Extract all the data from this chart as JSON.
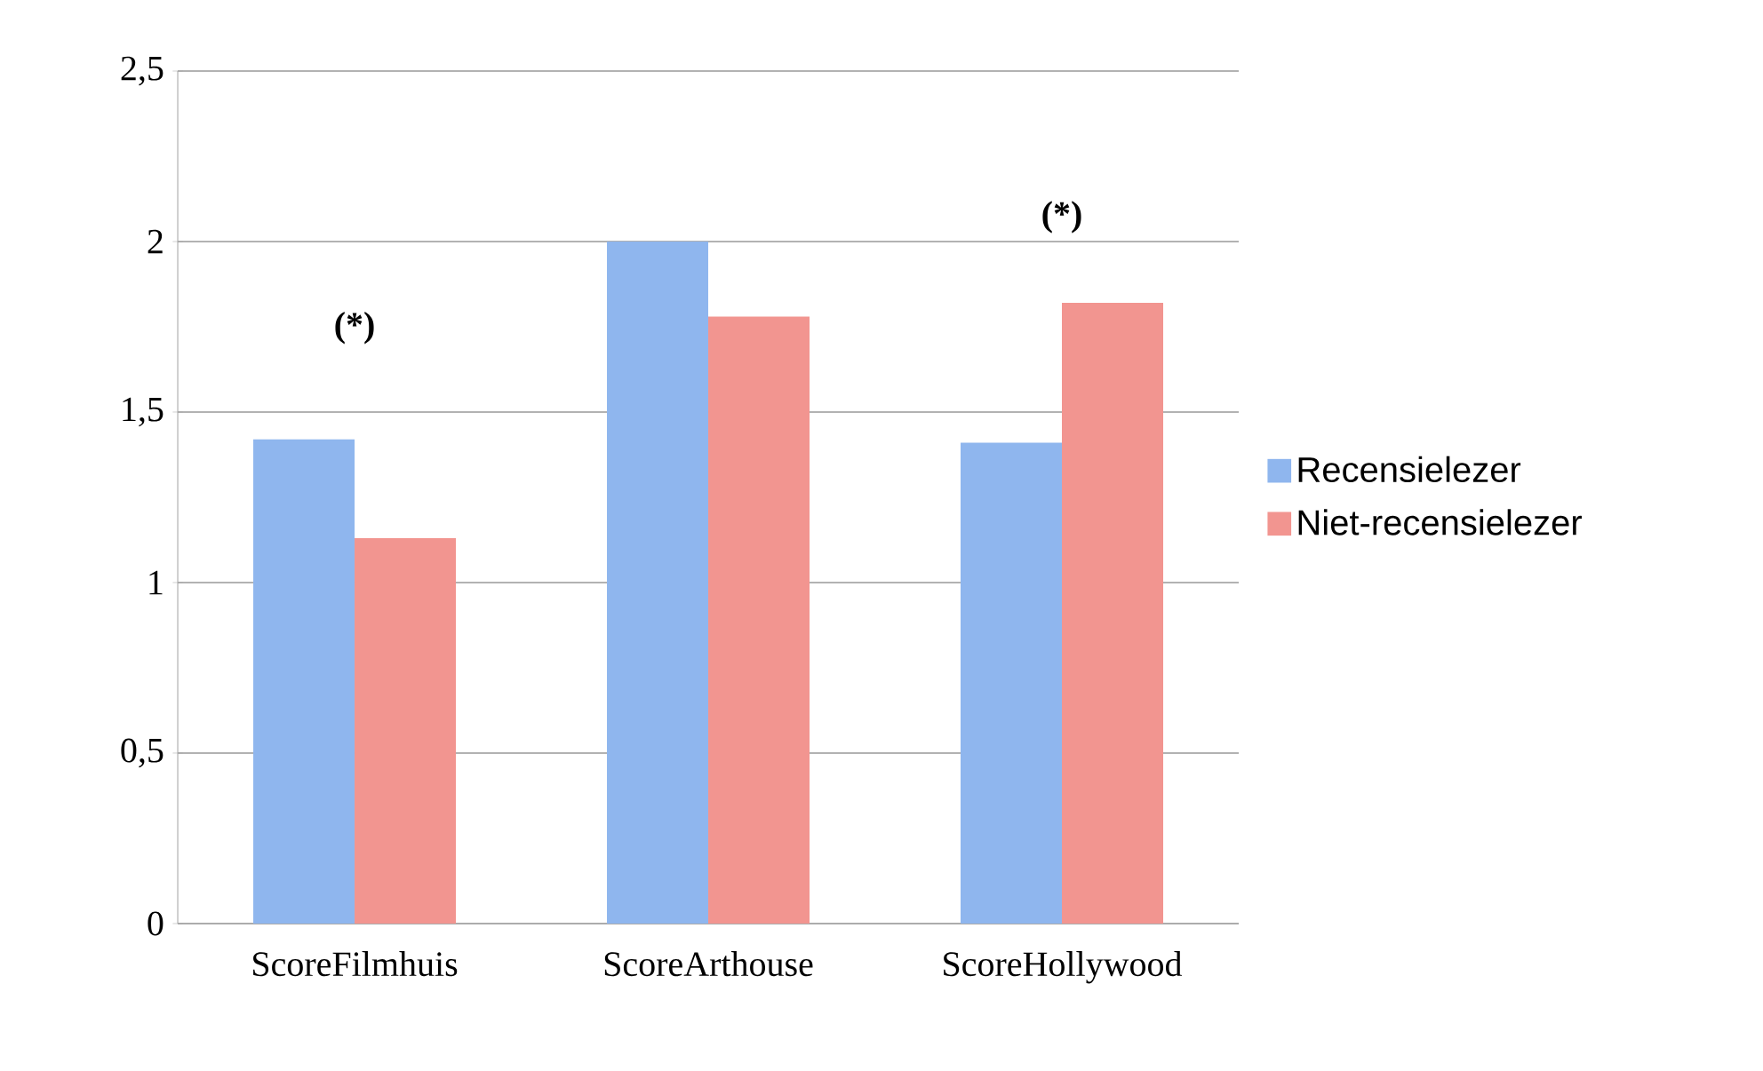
{
  "chart_data": {
    "type": "bar",
    "categories": [
      "ScoreFilmhuis",
      "ScoreArthouse",
      "ScoreHollywood"
    ],
    "series": [
      {
        "name": "Recensielezer",
        "color": "#8fb6ee",
        "values": [
          1.42,
          2.0,
          1.41
        ]
      },
      {
        "name": "Niet-recensielezer",
        "color": "#f29590",
        "values": [
          1.13,
          1.78,
          1.82
        ]
      }
    ],
    "ylim": [
      0,
      2.5
    ],
    "yticks": [
      {
        "value": 0,
        "label": "0"
      },
      {
        "value": 0.5,
        "label": "0,5"
      },
      {
        "value": 1,
        "label": "1"
      },
      {
        "value": 1.5,
        "label": "1,5"
      },
      {
        "value": 2,
        "label": "2"
      },
      {
        "value": 2.5,
        "label": "2,5"
      }
    ],
    "grid": "y",
    "legend": "right",
    "annotations": [
      "(*)",
      "(*)"
    ]
  }
}
